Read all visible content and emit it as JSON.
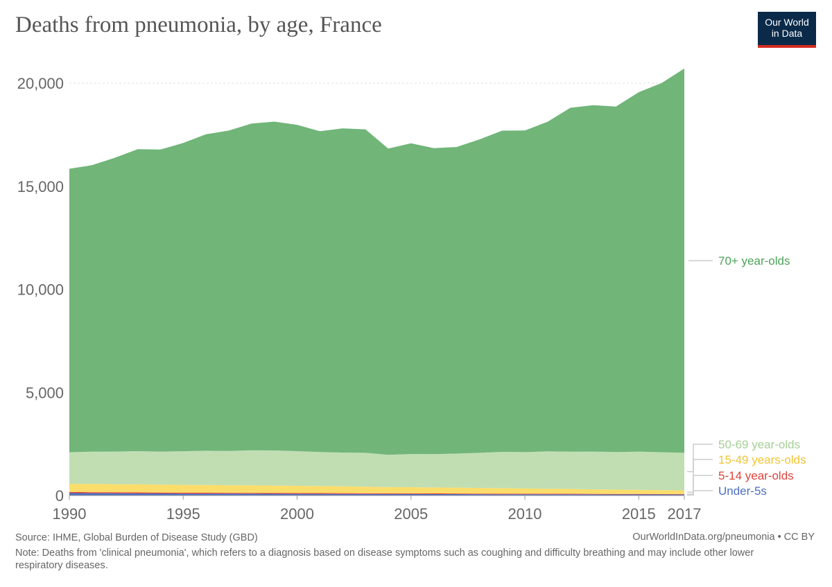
{
  "title": "Deaths from pneumonia, by age, France",
  "logo": {
    "line1": "Our World",
    "line2": "in Data"
  },
  "source": "Source: IHME, Global Burden of Disease Study (GBD)",
  "source_right": "OurWorldInData.org/pneumonia • CC BY",
  "note": "Note: Deaths from 'clinical pneumonia', which refers to a diagnosis based on disease symptoms such as coughing and difficulty breathing and may include other lower respiratory diseases.",
  "colors": {
    "age70plus": "#71b579",
    "age50_69": "#c1deb3",
    "age15_49": "#fbdd6b",
    "age5_14": "#e0433a",
    "under5": "#4c6fc1"
  },
  "chart_data": {
    "type": "area",
    "stacked": true,
    "x": [
      1990,
      1991,
      1992,
      1993,
      1994,
      1995,
      1996,
      1997,
      1998,
      1999,
      2000,
      2001,
      2002,
      2003,
      2004,
      2005,
      2006,
      2007,
      2008,
      2009,
      2010,
      2011,
      2012,
      2013,
      2014,
      2015,
      2016,
      2017
    ],
    "xticks": [
      "1990",
      "1995",
      "2000",
      "2005",
      "2010",
      "2015",
      "2017"
    ],
    "yticks": [
      "0",
      "5,000",
      "10,000",
      "15,000",
      "20,000"
    ],
    "ylim": [
      0,
      21000
    ],
    "xlim": [
      1990,
      2017
    ],
    "grid": "horizontal dotted",
    "legend_placement": "right, inline labels",
    "series": [
      {
        "name": "Under-5s",
        "color": "#4c6fc1",
        "values": [
          120,
          115,
          110,
          105,
          100,
          95,
          92,
          90,
          88,
          85,
          82,
          80,
          78,
          75,
          72,
          70,
          68,
          66,
          64,
          62,
          60,
          58,
          56,
          54,
          52,
          50,
          49,
          48
        ]
      },
      {
        "name": "5-14 year-olds",
        "color": "#e0433a",
        "values": [
          50,
          48,
          47,
          46,
          45,
          44,
          43,
          42,
          41,
          40,
          39,
          38,
          37,
          36,
          35,
          34,
          33,
          32,
          31,
          30,
          29,
          28,
          27,
          26,
          25,
          24,
          23,
          22
        ]
      },
      {
        "name": "15-49 years-olds",
        "color": "#fbdd6b",
        "values": [
          400,
          400,
          395,
          390,
          385,
          380,
          375,
          370,
          365,
          360,
          350,
          340,
          330,
          320,
          300,
          300,
          290,
          285,
          275,
          265,
          255,
          245,
          235,
          220,
          210,
          200,
          190,
          180
        ]
      },
      {
        "name": "50-69 year-olds",
        "color": "#c1deb3",
        "values": [
          1530,
          1560,
          1580,
          1610,
          1600,
          1630,
          1660,
          1660,
          1700,
          1700,
          1680,
          1650,
          1640,
          1640,
          1570,
          1610,
          1620,
          1650,
          1700,
          1760,
          1760,
          1810,
          1810,
          1830,
          1820,
          1850,
          1840,
          1820
        ]
      },
      {
        "name": "70+ year-olds",
        "color": "#71b579",
        "values": [
          13750,
          13900,
          14250,
          14650,
          14650,
          14950,
          15350,
          15540,
          15850,
          15950,
          15830,
          15560,
          15720,
          15690,
          14850,
          15070,
          14840,
          14870,
          15200,
          15580,
          15600,
          15990,
          16680,
          16800,
          16760,
          17440,
          17900,
          18640
        ]
      }
    ]
  }
}
